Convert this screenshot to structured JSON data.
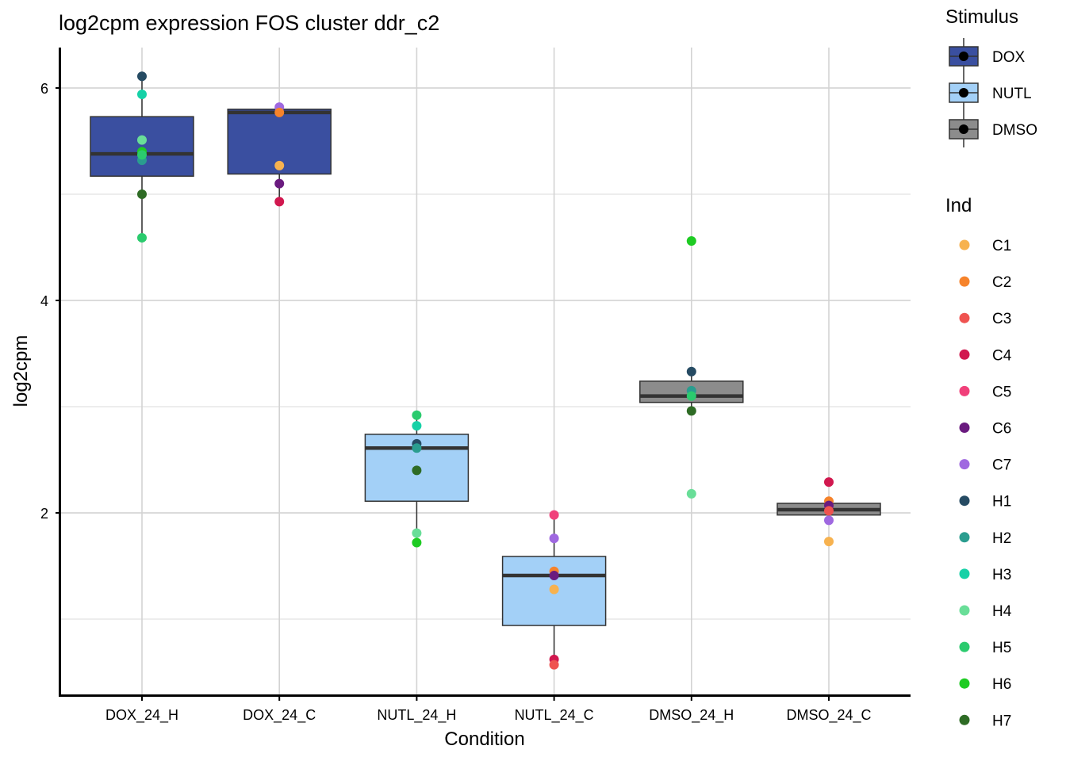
{
  "chart_data": {
    "type": "boxplot",
    "title": "log2cpm expression FOS cluster ddr_c2",
    "xlabel": "Condition",
    "ylabel": "log2cpm",
    "ylim": [
      0.45,
      6.4
    ],
    "yticks": [
      2,
      4,
      6
    ],
    "grid": true,
    "categories": [
      "DOX_24_H",
      "DOX_24_C",
      "NUTL_24_H",
      "NUTL_24_C",
      "DMSO_24_H",
      "DMSO_24_C"
    ],
    "boxes": [
      {
        "category": "DOX_24_H",
        "stimulus": "DOX",
        "q1": 5.17,
        "median": 5.38,
        "q3": 5.73,
        "whisker_low": 4.59,
        "whisker_high": 6.11
      },
      {
        "category": "DOX_24_C",
        "stimulus": "DOX",
        "q1": 5.19,
        "median": 5.77,
        "q3": 5.8,
        "whisker_low": 4.93,
        "whisker_high": 5.82
      },
      {
        "category": "NUTL_24_H",
        "stimulus": "NUTL",
        "q1": 2.11,
        "median": 2.61,
        "q3": 2.74,
        "whisker_low": 1.72,
        "whisker_high": 2.92
      },
      {
        "category": "NUTL_24_C",
        "stimulus": "NUTL",
        "q1": 0.94,
        "median": 1.41,
        "q3": 1.59,
        "whisker_low": 0.57,
        "whisker_high": 1.98
      },
      {
        "category": "DMSO_24_H",
        "stimulus": "DMSO",
        "q1": 3.04,
        "median": 3.1,
        "q3": 3.24,
        "whisker_low": 2.96,
        "whisker_high": 3.33
      },
      {
        "category": "DMSO_24_C",
        "stimulus": "DMSO",
        "q1": 1.98,
        "median": 2.03,
        "q3": 2.09,
        "whisker_low": 1.98,
        "whisker_high": 2.09
      }
    ],
    "points": [
      {
        "category": "DOX_24_H",
        "ind": "H1",
        "value": 6.11
      },
      {
        "category": "DOX_24_H",
        "ind": "H3",
        "value": 5.94
      },
      {
        "category": "DOX_24_H",
        "ind": "H4",
        "value": 5.51
      },
      {
        "category": "DOX_24_H",
        "ind": "H6",
        "value": 5.4
      },
      {
        "category": "DOX_24_H",
        "ind": "H2",
        "value": 5.32
      },
      {
        "category": "DOX_24_H",
        "ind": "H5",
        "value": 5.37
      },
      {
        "category": "DOX_24_H",
        "ind": "H7",
        "value": 5.0
      },
      {
        "category": "DOX_24_H",
        "ind": "H5",
        "value": 4.59
      },
      {
        "category": "DOX_24_C",
        "ind": "C7",
        "value": 5.82
      },
      {
        "category": "DOX_24_C",
        "ind": "C2",
        "value": 5.77
      },
      {
        "category": "DOX_24_C",
        "ind": "C1",
        "value": 5.27
      },
      {
        "category": "DOX_24_C",
        "ind": "C6",
        "value": 5.1
      },
      {
        "category": "DOX_24_C",
        "ind": "C4",
        "value": 4.93
      },
      {
        "category": "NUTL_24_H",
        "ind": "H5",
        "value": 2.92
      },
      {
        "category": "NUTL_24_H",
        "ind": "H3",
        "value": 2.82
      },
      {
        "category": "NUTL_24_H",
        "ind": "H1",
        "value": 2.65
      },
      {
        "category": "NUTL_24_H",
        "ind": "H2",
        "value": 2.61
      },
      {
        "category": "NUTL_24_H",
        "ind": "H7",
        "value": 2.4
      },
      {
        "category": "NUTL_24_H",
        "ind": "H4",
        "value": 1.81
      },
      {
        "category": "NUTL_24_H",
        "ind": "H6",
        "value": 1.72
      },
      {
        "category": "NUTL_24_C",
        "ind": "C5",
        "value": 1.98
      },
      {
        "category": "NUTL_24_C",
        "ind": "C7",
        "value": 1.76
      },
      {
        "category": "NUTL_24_C",
        "ind": "C2",
        "value": 1.45
      },
      {
        "category": "NUTL_24_C",
        "ind": "C6",
        "value": 1.41
      },
      {
        "category": "NUTL_24_C",
        "ind": "C1",
        "value": 1.28
      },
      {
        "category": "NUTL_24_C",
        "ind": "C4",
        "value": 0.62
      },
      {
        "category": "NUTL_24_C",
        "ind": "C3",
        "value": 0.57
      },
      {
        "category": "DMSO_24_H",
        "ind": "H6",
        "value": 4.56
      },
      {
        "category": "DMSO_24_H",
        "ind": "H1",
        "value": 3.33
      },
      {
        "category": "DMSO_24_H",
        "ind": "H2",
        "value": 3.15
      },
      {
        "category": "DMSO_24_H",
        "ind": "H5",
        "value": 3.1
      },
      {
        "category": "DMSO_24_H",
        "ind": "H7",
        "value": 2.96
      },
      {
        "category": "DMSO_24_H",
        "ind": "H4",
        "value": 2.18
      },
      {
        "category": "DMSO_24_C",
        "ind": "C4",
        "value": 2.29
      },
      {
        "category": "DMSO_24_C",
        "ind": "C2",
        "value": 2.11
      },
      {
        "category": "DMSO_24_C",
        "ind": "C6",
        "value": 2.07
      },
      {
        "category": "DMSO_24_C",
        "ind": "C3",
        "value": 2.02
      },
      {
        "category": "DMSO_24_C",
        "ind": "C7",
        "value": 1.93
      },
      {
        "category": "DMSO_24_C",
        "ind": "C1",
        "value": 1.73
      }
    ],
    "legend_stimulus": {
      "title": "Stimulus",
      "placement": "right",
      "items": [
        {
          "label": "DOX",
          "color": "#3A4FA0"
        },
        {
          "label": "NUTL",
          "color": "#A3D0F7"
        },
        {
          "label": "DMSO",
          "color": "#8C8C8C"
        }
      ]
    },
    "legend_ind": {
      "title": "Ind",
      "placement": "right",
      "items": [
        {
          "label": "C1",
          "color": "#F7B24F"
        },
        {
          "label": "C2",
          "color": "#F6832B"
        },
        {
          "label": "C3",
          "color": "#EF5350"
        },
        {
          "label": "C4",
          "color": "#D1184F"
        },
        {
          "label": "C5",
          "color": "#F0407A"
        },
        {
          "label": "C6",
          "color": "#6A1B7F"
        },
        {
          "label": "C7",
          "color": "#9F68E0"
        },
        {
          "label": "H1",
          "color": "#264B63"
        },
        {
          "label": "H2",
          "color": "#2A9D8F"
        },
        {
          "label": "H3",
          "color": "#16D1A7"
        },
        {
          "label": "H4",
          "color": "#69DE98"
        },
        {
          "label": "H5",
          "color": "#2BCB6E"
        },
        {
          "label": "H6",
          "color": "#1ECB23"
        },
        {
          "label": "H7",
          "color": "#2E6B25"
        }
      ]
    }
  }
}
